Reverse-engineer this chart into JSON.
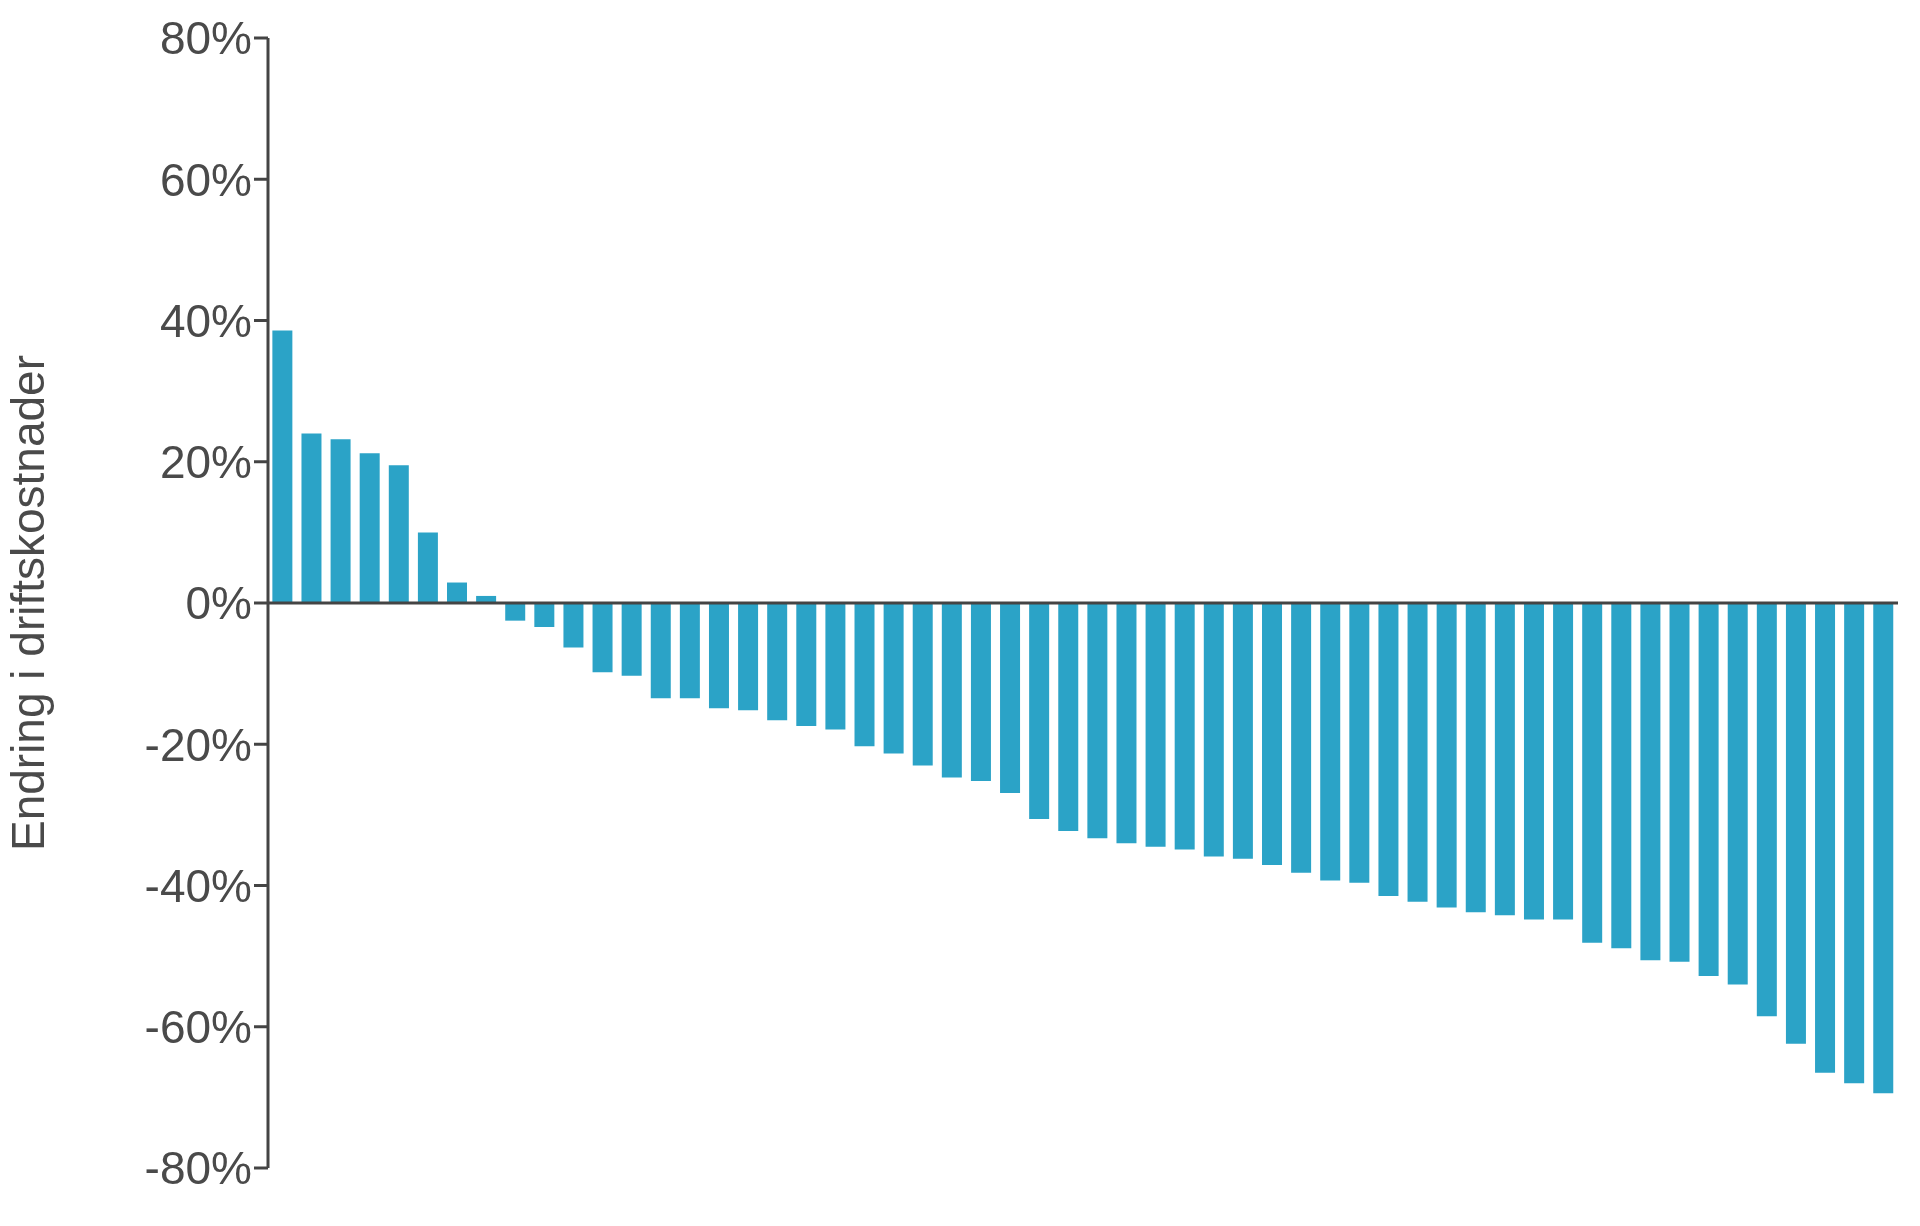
{
  "chart_data": {
    "type": "bar",
    "ylabel": "Endring i driftskostnader",
    "categories": [
      null,
      null,
      null,
      null,
      null,
      null,
      null,
      null,
      null,
      null,
      null,
      null,
      null,
      null,
      null,
      null,
      null,
      null,
      null,
      null,
      null,
      null,
      null,
      null,
      null,
      null,
      null,
      null,
      null,
      null,
      null,
      null,
      null,
      null,
      null,
      null,
      null,
      null,
      null,
      null,
      null,
      null,
      null,
      null,
      null,
      null,
      null,
      null,
      null,
      null,
      null,
      null,
      null,
      null,
      null,
      null
    ],
    "values": [
      38.6,
      24.0,
      23.2,
      21.2,
      19.5,
      10.0,
      2.9,
      1.0,
      -2.5,
      -3.4,
      -6.3,
      -9.8,
      -10.3,
      -13.5,
      -13.5,
      -14.9,
      -15.2,
      -16.6,
      -17.4,
      -17.9,
      -20.3,
      -21.3,
      -23.0,
      -24.7,
      -25.2,
      -26.9,
      -30.6,
      -32.3,
      -33.3,
      -34.0,
      -34.5,
      -34.9,
      -35.9,
      -36.2,
      -37.1,
      -38.2,
      -39.3,
      -39.6,
      -41.5,
      -42.3,
      -43.1,
      -43.8,
      -44.2,
      -44.8,
      -44.8,
      -48.1,
      -48.9,
      -50.6,
      -50.8,
      -52.8,
      -54.0,
      -58.5,
      -62.4,
      -66.5,
      -68.0,
      -69.4
    ],
    "color": "#2ba3c7",
    "ylim": [
      -80,
      80
    ],
    "yticks": [
      {
        "value": -80,
        "label": "-80%"
      },
      {
        "value": -60,
        "label": "-60%"
      },
      {
        "value": -40,
        "label": "-40%"
      },
      {
        "value": -20,
        "label": "-20%"
      },
      {
        "value": 0,
        "label": "0%"
      },
      {
        "value": 20,
        "label": "20%"
      },
      {
        "value": 40,
        "label": "40%"
      },
      {
        "value": 60,
        "label": "60%"
      },
      {
        "value": 80,
        "label": "80%"
      }
    ],
    "tick_labels": "y"
  }
}
